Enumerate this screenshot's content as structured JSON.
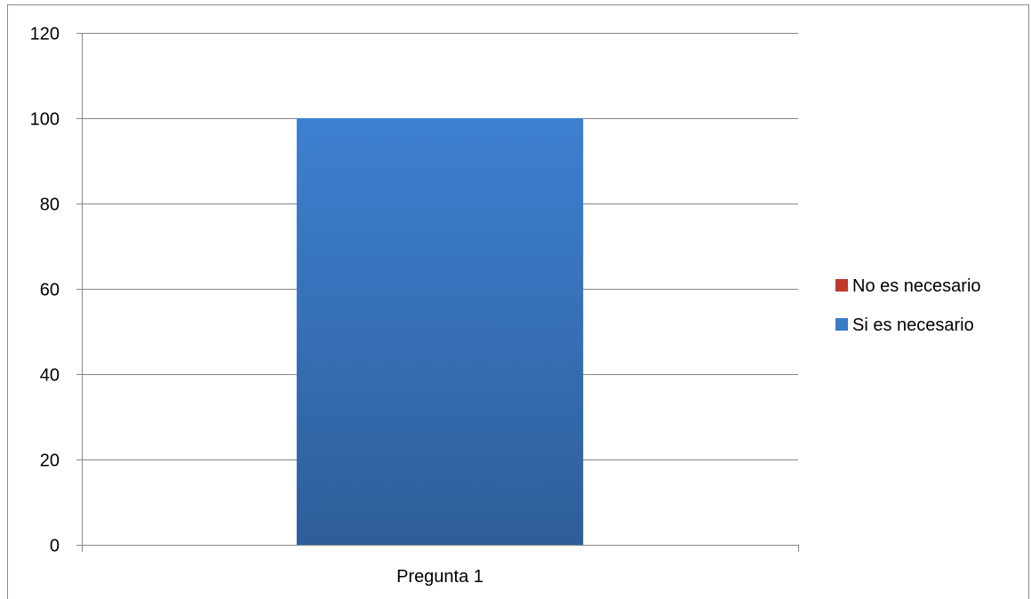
{
  "chart_data": {
    "type": "bar",
    "title": "",
    "xlabel": "",
    "ylabel": "",
    "categories": [
      "Pregunta 1"
    ],
    "series": [
      {
        "name": "No es necesario",
        "values": [
          0
        ],
        "color": "#c0392b"
      },
      {
        "name": "Si es necesario",
        "values": [
          100
        ],
        "color": "#3a7bc8"
      }
    ],
    "ylim": [
      0,
      120
    ],
    "yticks": [
      0,
      20,
      40,
      60,
      80,
      100,
      120
    ],
    "grid": true,
    "legend_position": "right"
  }
}
